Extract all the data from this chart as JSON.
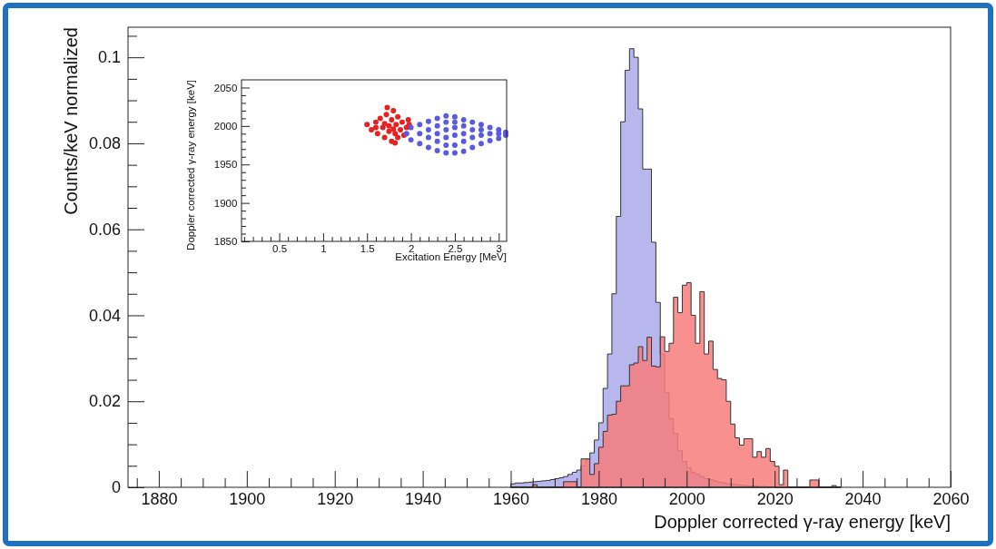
{
  "chart_data": [
    {
      "type": "histogram",
      "xlabel": "Doppler corrected γ-ray energy [keV]",
      "ylabel": "Counts/keV normalized",
      "bins": [
        1960,
        1961,
        1962,
        1963,
        1964,
        1965,
        1966,
        1967,
        1968,
        1969,
        1970,
        1971,
        1972,
        1973,
        1974,
        1975,
        1976,
        1977,
        1978,
        1979,
        1980,
        1981,
        1982,
        1983,
        1984,
        1985,
        1986,
        1987,
        1988,
        1989,
        1990,
        1991,
        1992,
        1993,
        1994,
        1995,
        1996,
        1997,
        1998,
        1999,
        2000,
        2001,
        2002,
        2003,
        2004,
        2005,
        2006,
        2007,
        2008,
        2009,
        2010,
        2011,
        2012,
        2013,
        2014,
        2015,
        2016,
        2017,
        2018,
        2019,
        2020,
        2021,
        2022,
        2023,
        2024,
        2025,
        2026,
        2027,
        2028,
        2029,
        2030,
        2031,
        2032,
        2033,
        2034,
        2035
      ],
      "series": [
        {
          "color": "#aaaaea",
          "values": [
            0.0008,
            0.001,
            0.001,
            0.0011,
            0.0012,
            0.0013,
            0.0014,
            0.0015,
            0.0016,
            0.0018,
            0.002,
            0.0022,
            0.0025,
            0.003,
            0.0035,
            0.004,
            0.005,
            0.0065,
            0.008,
            0.011,
            0.015,
            0.023,
            0.031,
            0.045,
            0.063,
            0.085,
            0.097,
            0.102,
            0.1,
            0.088,
            0.074,
            0.074,
            0.057,
            0.043,
            0.031,
            0.022,
            0.016,
            0.0125,
            0.0085,
            0.006,
            0.0045,
            0.0035,
            0.003,
            0.0025,
            0.002,
            0.0018,
            0.0015,
            0.0012,
            0.001,
            0.0008,
            0.0007,
            0.0006,
            0.0005,
            0.0004,
            0.0003,
            0.0003,
            0.0002,
            0.0002,
            0.0001,
            0.0001,
            0,
            0,
            0,
            0,
            0,
            0,
            0,
            0,
            0,
            0,
            0,
            0,
            0,
            0,
            0
          ]
        },
        {
          "color": "#f77c7c",
          "values": [
            0,
            0,
            0,
            0,
            0,
            0.0006,
            0,
            0,
            0,
            0,
            0,
            0,
            0.0013,
            0.0013,
            0.0013,
            0,
            0.0066,
            0.0066,
            0.003,
            0.0055,
            0.0093,
            0.013,
            0.0168,
            0.017,
            0.02,
            0.0236,
            0.0236,
            0.0285,
            0.0289,
            0.0327,
            0.0295,
            0.0349,
            0.0282,
            0.028,
            0.035,
            0.0316,
            0.0335,
            0.0442,
            0.0406,
            0.047,
            0.0476,
            0.04,
            0.0335,
            0.0455,
            0.031,
            0.034,
            0.0274,
            0.0253,
            0.025,
            0.02,
            0.0147,
            0.0115,
            0.0098,
            0.0113,
            0.0113,
            0.007,
            0.0083,
            0.007,
            0.009,
            0.006,
            0.0049,
            0.0006,
            0.004,
            0,
            0,
            0,
            0,
            0,
            0.0017,
            0.0017,
            0,
            0,
            0,
            0.0004,
            0
          ]
        }
      ],
      "xlim": [
        1873,
        2060
      ],
      "xticks": [
        {
          "value": 1875,
          "label": null
        },
        1880,
        {
          "value": 1885,
          "label": null
        },
        {
          "value": 1890,
          "label": null
        },
        {
          "value": 1895,
          "label": null
        },
        1900,
        {
          "value": 1905,
          "label": null
        },
        {
          "value": 1910,
          "label": null
        },
        {
          "value": 1915,
          "label": null
        },
        1920,
        {
          "value": 1925,
          "label": null
        },
        {
          "value": 1930,
          "label": null
        },
        {
          "value": 1935,
          "label": null
        },
        1940,
        {
          "value": 1945,
          "label": null
        },
        {
          "value": 1950,
          "label": null
        },
        {
          "value": 1955,
          "label": null
        },
        1960,
        {
          "value": 1965,
          "label": null
        },
        {
          "value": 1970,
          "label": null
        },
        {
          "value": 1975,
          "label": null
        },
        1980,
        {
          "value": 1985,
          "label": null
        },
        {
          "value": 1990,
          "label": null
        },
        {
          "value": 1995,
          "label": null
        },
        2000,
        {
          "value": 2005,
          "label": null
        },
        {
          "value": 2010,
          "label": null
        },
        {
          "value": 2015,
          "label": null
        },
        2020,
        {
          "value": 2025,
          "label": null
        },
        {
          "value": 2030,
          "label": null
        },
        {
          "value": 2035,
          "label": null
        },
        2040,
        {
          "value": 2045,
          "label": null
        },
        {
          "value": 2050,
          "label": null
        },
        {
          "value": 2055,
          "label": null
        },
        2060
      ],
      "ylim": [
        0,
        0.107
      ],
      "yticks": [
        0,
        {
          "value": 0.005,
          "label": null
        },
        {
          "value": 0.01,
          "label": null
        },
        {
          "value": 0.015,
          "label": null
        },
        0.02,
        {
          "value": 0.025,
          "label": null
        },
        {
          "value": 0.03,
          "label": null
        },
        {
          "value": 0.035,
          "label": null
        },
        0.04,
        {
          "value": 0.045,
          "label": null
        },
        {
          "value": 0.05,
          "label": null
        },
        {
          "value": 0.055,
          "label": null
        },
        0.06,
        {
          "value": 0.065,
          "label": null
        },
        {
          "value": 0.07,
          "label": null
        },
        {
          "value": 0.075,
          "label": null
        },
        0.08,
        {
          "value": 0.085,
          "label": null
        },
        {
          "value": 0.09,
          "label": null
        },
        {
          "value": 0.095,
          "label": null
        },
        0.1,
        {
          "value": 0.105,
          "label": null
        }
      ]
    },
    {
      "type": "scatter",
      "xlabel": "Excitation Energy [MeV]",
      "ylabel": "Doppler corrected γ-ray energy [keV]",
      "marker": "circle",
      "series": [
        {
          "color": "#e82020",
          "x": [
            1.5,
            1.55,
            1.6,
            1.62,
            1.65,
            1.68,
            1.7,
            1.7,
            1.72,
            1.75,
            1.75,
            1.78,
            1.78,
            1.8,
            1.8,
            1.82,
            1.83,
            1.85,
            1.85,
            1.88,
            1.9,
            1.92,
            1.95,
            1.98,
            1.97,
            1.6,
            1.73,
            1.82
          ],
          "values": [
            2002,
            1995,
            2005,
            1990,
            2010,
            1998,
            1985,
            2003,
            2015,
            1993,
            2000,
            1980,
            2008,
            1996,
            2020,
            1990,
            2002,
            1985,
            2012,
            1995,
            2005,
            1988,
            1998,
            2002,
            2008,
            1998,
            2024,
            1978
          ]
        },
        {
          "color": "#5a5ae0",
          "x": [
            1.95,
            2.0,
            2.0,
            2.1,
            2.1,
            2.2,
            2.2,
            2.3,
            2.3,
            2.4,
            2.4,
            2.5,
            2.5,
            2.6,
            2.6,
            2.7,
            2.7,
            2.8,
            2.8,
            2.9,
            2.9,
            3.0,
            3.0,
            3.08,
            3.08,
            2.1,
            2.2,
            2.2,
            2.3,
            2.3,
            2.3,
            2.4,
            2.4,
            2.4,
            2.4,
            2.5,
            2.5,
            2.5,
            2.5,
            2.6,
            2.6,
            2.6,
            2.7,
            2.7,
            2.8,
            2.8,
            2.9,
            3.0
          ],
          "values": [
            1990,
            1982,
            1998,
            1977,
            2002,
            1972,
            2006,
            1968,
            2010,
            1965,
            2013,
            1965,
            2012,
            1967,
            2008,
            1972,
            2005,
            1977,
            2002,
            1981,
            1998,
            1984,
            1995,
            1988,
            1992,
            1990,
            1985,
            1995,
            1980,
            1990,
            2000,
            1975,
            1985,
            1995,
            2005,
            1975,
            1988,
            1998,
            2005,
            1980,
            1990,
            2000,
            1985,
            1995,
            1988,
            1995,
            1990,
            1990
          ]
        }
      ],
      "xlim": [
        0.07,
        3.09
      ],
      "xticks": [
        {
          "value": 0.1,
          "label": null
        },
        {
          "value": 0.2,
          "label": null
        },
        {
          "value": 0.3,
          "label": null
        },
        {
          "value": 0.4,
          "label": null
        },
        0.5,
        {
          "value": 0.6,
          "label": null
        },
        {
          "value": 0.7,
          "label": null
        },
        {
          "value": 0.8,
          "label": null
        },
        {
          "value": 0.9,
          "label": null
        },
        1,
        {
          "value": 1.1,
          "label": null
        },
        {
          "value": 1.2,
          "label": null
        },
        {
          "value": 1.3,
          "label": null
        },
        {
          "value": 1.4,
          "label": null
        },
        1.5,
        {
          "value": 1.6,
          "label": null
        },
        {
          "value": 1.7,
          "label": null
        },
        {
          "value": 1.8,
          "label": null
        },
        {
          "value": 1.9,
          "label": null
        },
        2,
        {
          "value": 2.1,
          "label": null
        },
        {
          "value": 2.2,
          "label": null
        },
        {
          "value": 2.3,
          "label": null
        },
        {
          "value": 2.4,
          "label": null
        },
        2.5,
        {
          "value": 2.6,
          "label": null
        },
        {
          "value": 2.7,
          "label": null
        },
        {
          "value": 2.8,
          "label": null
        },
        {
          "value": 2.9,
          "label": null
        },
        3
      ],
      "ylim": [
        1850,
        2060
      ],
      "yticks": [
        1850,
        {
          "value": 1860,
          "label": null
        },
        {
          "value": 1870,
          "label": null
        },
        {
          "value": 1880,
          "label": null
        },
        {
          "value": 1890,
          "label": null
        },
        1900,
        {
          "value": 1910,
          "label": null
        },
        {
          "value": 1920,
          "label": null
        },
        {
          "value": 1930,
          "label": null
        },
        {
          "value": 1940,
          "label": null
        },
        1950,
        {
          "value": 1960,
          "label": null
        },
        {
          "value": 1970,
          "label": null
        },
        {
          "value": 1980,
          "label": null
        },
        {
          "value": 1990,
          "label": null
        },
        2000,
        {
          "value": 2010,
          "label": null
        },
        {
          "value": 2020,
          "label": null
        },
        {
          "value": 2030,
          "label": null
        },
        {
          "value": 2040,
          "label": null
        },
        2050
      ]
    }
  ]
}
